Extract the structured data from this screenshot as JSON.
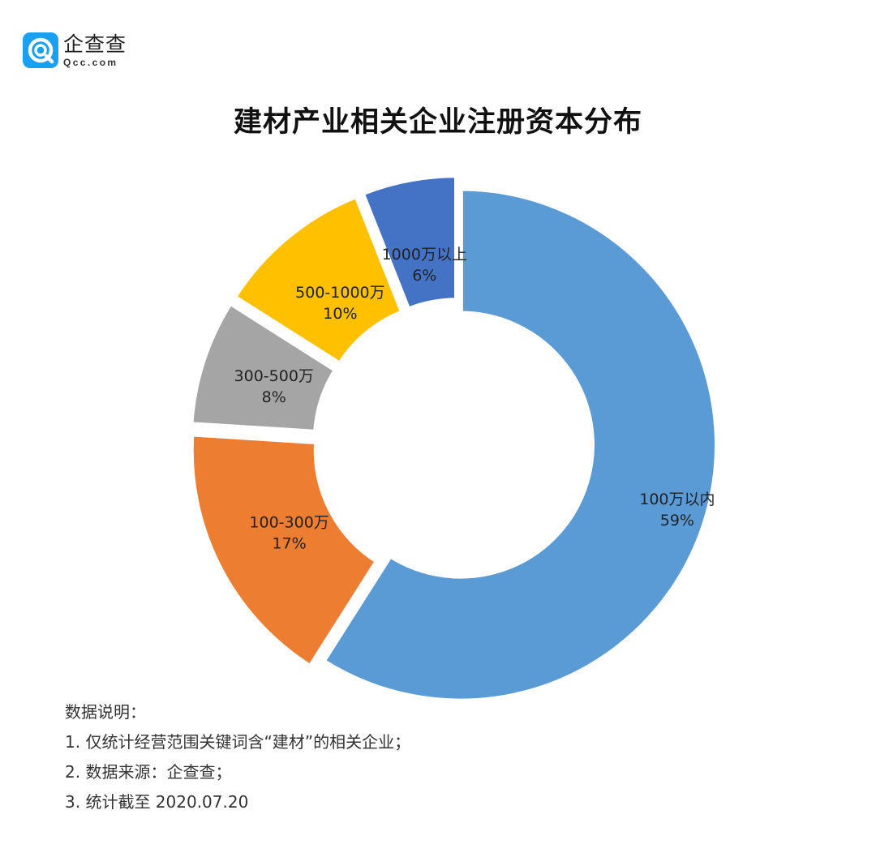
{
  "logo": {
    "name": "企查查",
    "sub": "Qcc.com"
  },
  "colors": {
    "brand": "#1aa0f0",
    "series": [
      "#5b9bd5",
      "#ed7d31",
      "#a5a5a5",
      "#ffc000",
      "#4472c4"
    ]
  },
  "chart_data": {
    "type": "pie",
    "style": "donut",
    "title": "建材产业相关企业注册资本分布",
    "categories": [
      "100万以内",
      "100-300万",
      "300-500万",
      "500-1000万",
      "1000万以上"
    ],
    "values": [
      59,
      17,
      8,
      10,
      6
    ],
    "value_labels": [
      "59%",
      "17%",
      "8%",
      "10%",
      "6%"
    ],
    "exploded": true,
    "legend": "none"
  },
  "notes": {
    "heading": "数据说明：",
    "items": [
      "1. 仅统计经营范围关键词含“建材”的相关企业；",
      "2. 数据来源：企查查；",
      "3. 统计截至 2020.07.20"
    ]
  }
}
